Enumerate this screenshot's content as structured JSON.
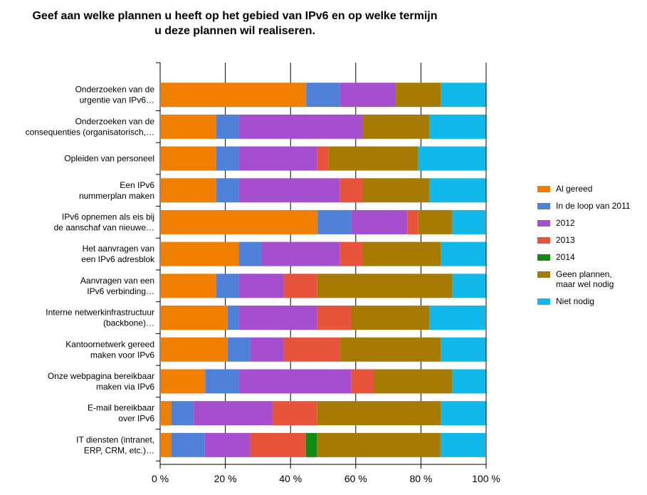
{
  "chart_data": {
    "type": "stacked-bar-horizontal",
    "title": "Geef aan welke plannen u heeft op het gebied van IPv6 en op welke termijn u deze plannen wil realiseren.",
    "categories": [
      [
        "Onderzoeken van de",
        "urgentie van IPv6…"
      ],
      [
        "Onderzoeken van de",
        "consequenties (organisatorisch,…"
      ],
      [
        "Opleiden van personeel"
      ],
      [
        "Een IPv6",
        "nummerplan maken"
      ],
      [
        "IPv6 opnemen als eis bij",
        "de aanschaf van nieuwe…"
      ],
      [
        "Het aanvragen van",
        "een IPv6 adresblok"
      ],
      [
        "Aanvragen van een",
        "IPv6 verbinding…"
      ],
      [
        "Interne netwerkinfrastructuur",
        "(backbone)…"
      ],
      [
        "Kantoornetwerk gereed",
        "maken voor IPv6"
      ],
      [
        "Onze webpagina bereikbaar",
        "maken via IPv6"
      ],
      [
        "E-mail bereikbaar",
        "over IPv6"
      ],
      [
        "IT diensten (intranet,",
        "ERP, CRM, etc.)…"
      ]
    ],
    "series": [
      {
        "name": "Al gereed",
        "color": "#f07f00",
        "values": [
          44.8,
          17.2,
          17.2,
          17.2,
          48.3,
          24.1,
          17.2,
          20.7,
          20.7,
          13.8,
          3.4,
          3.4
        ]
      },
      {
        "name": "In de loop van 2011",
        "color": "#4f81d8",
        "values": [
          10.3,
          6.9,
          6.9,
          6.9,
          10.3,
          6.9,
          6.9,
          3.4,
          6.9,
          10.3,
          6.9,
          10.3
        ]
      },
      {
        "name": "2012",
        "color": "#a54fcf",
        "values": [
          17.2,
          37.9,
          24.1,
          31.0,
          17.2,
          24.1,
          13.8,
          24.1,
          10.3,
          34.5,
          24.1,
          13.8
        ]
      },
      {
        "name": "2013",
        "color": "#e8533b",
        "values": [
          0,
          0,
          3.4,
          6.9,
          3.4,
          6.9,
          10.3,
          10.3,
          17.2,
          6.9,
          13.8,
          17.2
        ]
      },
      {
        "name": "2014",
        "color": "#148a14",
        "values": [
          0,
          0,
          0,
          0,
          0,
          0,
          0,
          0,
          0,
          0,
          0,
          3.4
        ]
      },
      {
        "name": "Geen plannen, maar wel nodig",
        "color": "#a67b04",
        "values": [
          13.8,
          20.7,
          27.6,
          20.7,
          10.3,
          24.1,
          41.4,
          24.1,
          31.0,
          24.1,
          37.9,
          37.9
        ]
      },
      {
        "name": "Niet nodig",
        "color": "#12b8ea",
        "values": [
          13.8,
          17.2,
          20.7,
          17.2,
          10.3,
          13.8,
          10.3,
          17.2,
          13.8,
          10.3,
          13.8,
          13.8
        ]
      }
    ],
    "xlim": [
      0,
      100
    ],
    "xticks": [
      {
        "value": 0,
        "label": "0 %"
      },
      {
        "value": 20,
        "label": "20 %"
      },
      {
        "value": 40,
        "label": "40 %"
      },
      {
        "value": 60,
        "label": "60 %"
      },
      {
        "value": 80,
        "label": "80 %"
      },
      {
        "value": 100,
        "label": "100 %"
      }
    ],
    "grid": true
  }
}
